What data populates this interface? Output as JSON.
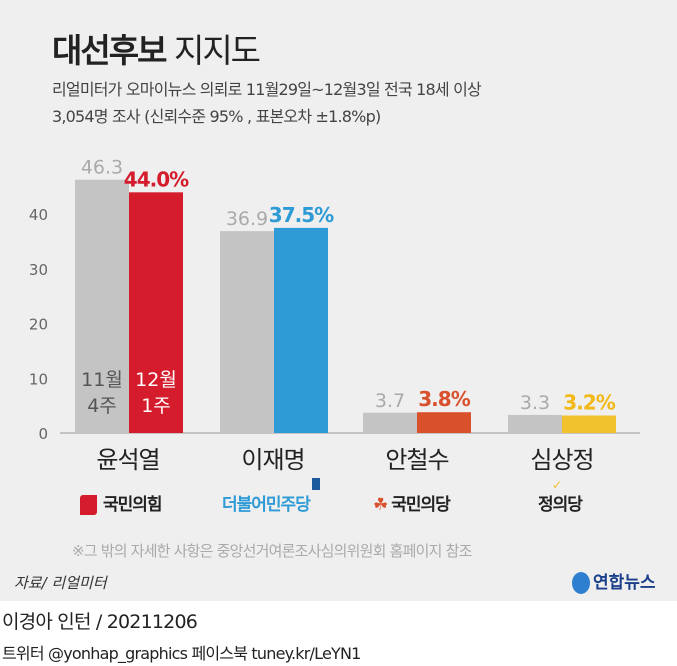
{
  "header": {
    "title_bold": "대선후보",
    "title_light": "지지도",
    "subtitle1": "리얼미터가 오마이뉴스 의뢰로 11월29일~12월3일 전국 18세 이상",
    "subtitle2": "3,054명 조사 (신뢰수준 95% , 표본오차 ±1.8%p)"
  },
  "chart_data": {
    "type": "bar",
    "title": "대선후보 지지도",
    "categories": [
      "윤석열",
      "이재명",
      "안철수",
      "심상정"
    ],
    "series": [
      {
        "name": "11월 4주",
        "values": [
          46.3,
          36.9,
          3.7,
          3.3
        ],
        "labels": [
          "46.3",
          "36.9",
          "3.7",
          "3.3"
        ]
      },
      {
        "name": "12월 1주",
        "values": [
          44.0,
          37.5,
          3.8,
          3.2
        ],
        "labels": [
          "44.0%",
          "37.5%",
          "3.8%",
          "3.2%"
        ]
      }
    ],
    "yticks": [
      "0",
      "10",
      "20",
      "30",
      "40"
    ],
    "ylim": [
      0,
      50
    ],
    "legend_in_bar": {
      "s1_line1": "11월",
      "s1_line2": "4주",
      "s2_line1": "12월",
      "s2_line2": "1주"
    },
    "colors": {
      "previous": "#c4c4c4",
      "current": [
        "#d41c2c",
        "#2e9bd6",
        "#d9512c",
        "#f2c12e"
      ],
      "current_label": [
        "#d41c2c",
        "#2e9bd6",
        "#d9512c",
        "#f2b817"
      ]
    }
  },
  "parties": [
    "국민의힘",
    "더불어민주당",
    "국민의당",
    "정의당"
  ],
  "note": "※그 밖의 자세한 사항은 중앙선거여론조사심의위원회 홈페이지 참조",
  "source": "자료/ 리얼미터",
  "agency": "연합뉴스",
  "footer": {
    "author": "이경아 인턴 / 20211206",
    "social": "트위터 @yonhap_graphics  페이스북 tuney.kr/LeYN1"
  }
}
